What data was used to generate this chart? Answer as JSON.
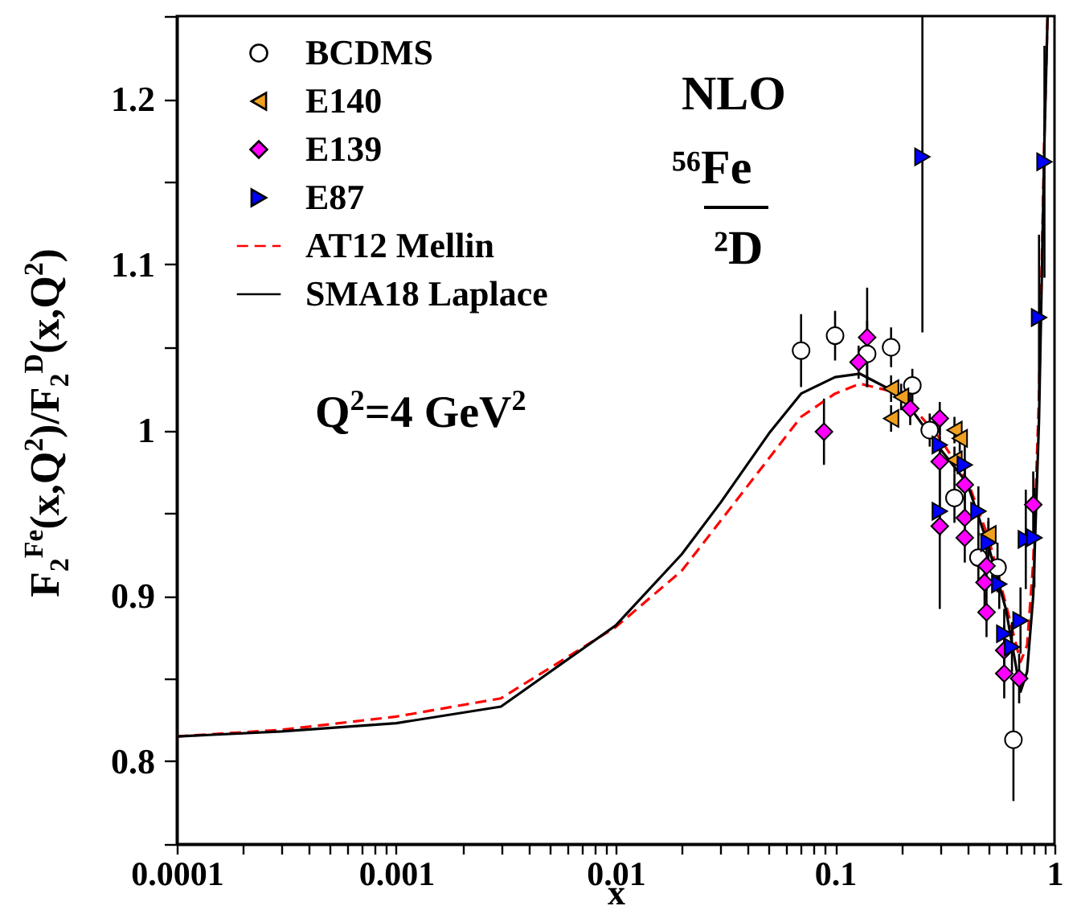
{
  "chart_data": {
    "type": "scatter",
    "xlabel": "x",
    "ylabel": "F$_{2}$$^{Fe}$(x,Q$^{2}$)/F$_{2}$$^{D}$(x,Q$^{2}$)",
    "annotations": [
      "NLO",
      "⁵⁶Fe",
      "²D",
      "Q$^{2}$=4 GeV$^{2}$"
    ],
    "log": "x",
    "legend": "top left",
    "grid": false,
    "xlim": [
      0.0001,
      1
    ],
    "xticks": [
      0.0001,
      {
        "value": 0.0002,
        "label": null
      },
      {
        "value": 0.0003,
        "label": null
      },
      {
        "value": 0.0004,
        "label": null
      },
      {
        "value": 0.0005,
        "label": null
      },
      {
        "value": 0.0006,
        "label": null
      },
      {
        "value": 0.0007,
        "label": null
      },
      {
        "value": 0.0008,
        "label": null
      },
      {
        "value": 0.0009,
        "label": null
      },
      0.001,
      {
        "value": 0.002,
        "label": null
      },
      {
        "value": 0.003,
        "label": null
      },
      {
        "value": 0.004,
        "label": null
      },
      {
        "value": 0.005,
        "label": null
      },
      {
        "value": 0.006,
        "label": null
      },
      {
        "value": 0.007,
        "label": null
      },
      {
        "value": 0.008,
        "label": null
      },
      {
        "value": 0.009,
        "label": null
      },
      0.01,
      {
        "value": 0.02,
        "label": null
      },
      {
        "value": 0.03,
        "label": null
      },
      {
        "value": 0.04,
        "label": null
      },
      {
        "value": 0.05,
        "label": null
      },
      {
        "value": 0.06,
        "label": null
      },
      {
        "value": 0.07,
        "label": null
      },
      {
        "value": 0.08,
        "label": null
      },
      {
        "value": 0.09,
        "label": null
      },
      0.1,
      {
        "value": 0.2,
        "label": null
      },
      {
        "value": 0.3,
        "label": null
      },
      {
        "value": 0.4,
        "label": null
      },
      {
        "value": 0.5,
        "label": null
      },
      {
        "value": 0.6,
        "label": null
      },
      {
        "value": 0.7,
        "label": null
      },
      {
        "value": 0.8,
        "label": null
      },
      {
        "value": 0.9,
        "label": null
      },
      1
    ],
    "ylim": [
      0.75,
      1.25
    ],
    "yticks": [
      {
        "value": 0.75,
        "label": null
      },
      0.8,
      {
        "value": 0.85,
        "label": null
      },
      0.9,
      {
        "value": 0.95,
        "label": null
      },
      1,
      {
        "value": 1.05,
        "label": null
      },
      1.1,
      {
        "value": 1.15,
        "label": null
      },
      1.2,
      {
        "value": 1.25,
        "label": null
      }
    ],
    "series": [
      {
        "name": "BCDMS",
        "marker": "circle",
        "color": "#ffffff",
        "x": [
          0.07,
          0.1,
          0.14,
          0.18,
          0.225,
          0.27,
          0.35,
          0.45,
          0.55,
          0.65
        ],
        "values": [
          1.048,
          1.057,
          1.046,
          1.05,
          1.027,
          1.0,
          0.959,
          0.923,
          0.917,
          0.813
        ],
        "errors": [
          0.022,
          0.015,
          0.02,
          0.012,
          0.01,
          0.01,
          0.015,
          0.015,
          0.015,
          0.037
        ]
      },
      {
        "name": "E140",
        "marker": "triangle-left",
        "color": "#f0a020",
        "x": [
          0.18,
          0.18,
          0.2,
          0.35,
          0.35,
          0.37,
          0.5
        ],
        "values": [
          1.025,
          1.007,
          1.02,
          1.0,
          0.982,
          0.995,
          0.937
        ],
        "errors": [
          0.008,
          0.008,
          0.008,
          0.008,
          0.008,
          0.008,
          0.008
        ]
      },
      {
        "name": "E139",
        "marker": "diamond",
        "color": "#ff00ff",
        "x": [
          0.089,
          0.128,
          0.14,
          0.22,
          0.3,
          0.3,
          0.3,
          0.39,
          0.39,
          0.39,
          0.48,
          0.49,
          0.49,
          0.59,
          0.59,
          0.69,
          0.8
        ],
        "values": [
          0.999,
          1.041,
          1.056,
          1.013,
          1.007,
          0.981,
          0.942,
          0.967,
          0.947,
          0.935,
          0.908,
          0.918,
          0.89,
          0.867,
          0.853,
          0.85,
          0.955
        ],
        "errors": [
          0.02,
          0.01,
          0.03,
          0.01,
          0.01,
          0.015,
          0.05,
          0.015,
          0.015,
          0.015,
          0.015,
          0.015,
          0.015,
          0.015,
          0.015,
          0.015,
          0.02
        ]
      },
      {
        "name": "E87",
        "marker": "triangle-right",
        "color": "#0000ff",
        "x": [
          0.25,
          0.3,
          0.3,
          0.39,
          0.45,
          0.5,
          0.56,
          0.59,
          0.64,
          0.7,
          0.74,
          0.81,
          0.85,
          0.9
        ],
        "values": [
          1.165,
          0.991,
          0.951,
          0.979,
          0.951,
          0.932,
          0.907,
          0.877,
          0.869,
          0.885,
          0.934,
          0.935,
          1.068,
          1.162
        ],
        "errors": [
          [
            1.059,
            1.25
          ],
          0.015,
          0.015,
          0.015,
          0.015,
          0.015,
          0.015,
          0.015,
          0.015,
          0.02,
          0.03,
          0.03,
          0.05,
          0.07
        ]
      },
      {
        "name": "AT12 Mellin",
        "type": "line",
        "line_style": "dashed",
        "color": "#ff0000",
        "x": [
          0.0001,
          0.0003,
          0.001,
          0.003,
          0.01,
          0.02,
          0.03,
          0.05,
          0.07,
          0.1,
          0.13,
          0.2,
          0.3,
          0.4,
          0.5,
          0.6,
          0.7,
          0.75,
          0.8,
          0.85,
          0.9,
          0.93
        ],
        "values": [
          0.815,
          0.819,
          0.827,
          0.838,
          0.881,
          0.915,
          0.945,
          0.983,
          1.008,
          1.022,
          1.028,
          1.022,
          0.995,
          0.97,
          0.935,
          0.895,
          0.86,
          0.87,
          0.92,
          1.02,
          1.18,
          1.25
        ]
      },
      {
        "name": "SMA18 Laplace",
        "type": "line",
        "line_style": "solid",
        "color": "#000000",
        "x": [
          0.0001,
          0.0003,
          0.001,
          0.003,
          0.01,
          0.02,
          0.03,
          0.05,
          0.07,
          0.1,
          0.13,
          0.2,
          0.3,
          0.4,
          0.5,
          0.6,
          0.7,
          0.75,
          0.8,
          0.85,
          0.9,
          0.93
        ],
        "values": [
          0.815,
          0.818,
          0.823,
          0.833,
          0.882,
          0.925,
          0.956,
          0.998,
          1.022,
          1.032,
          1.034,
          1.021,
          0.989,
          0.968,
          0.93,
          0.892,
          0.842,
          0.854,
          0.9,
          1.006,
          1.175,
          1.25
        ]
      }
    ]
  }
}
